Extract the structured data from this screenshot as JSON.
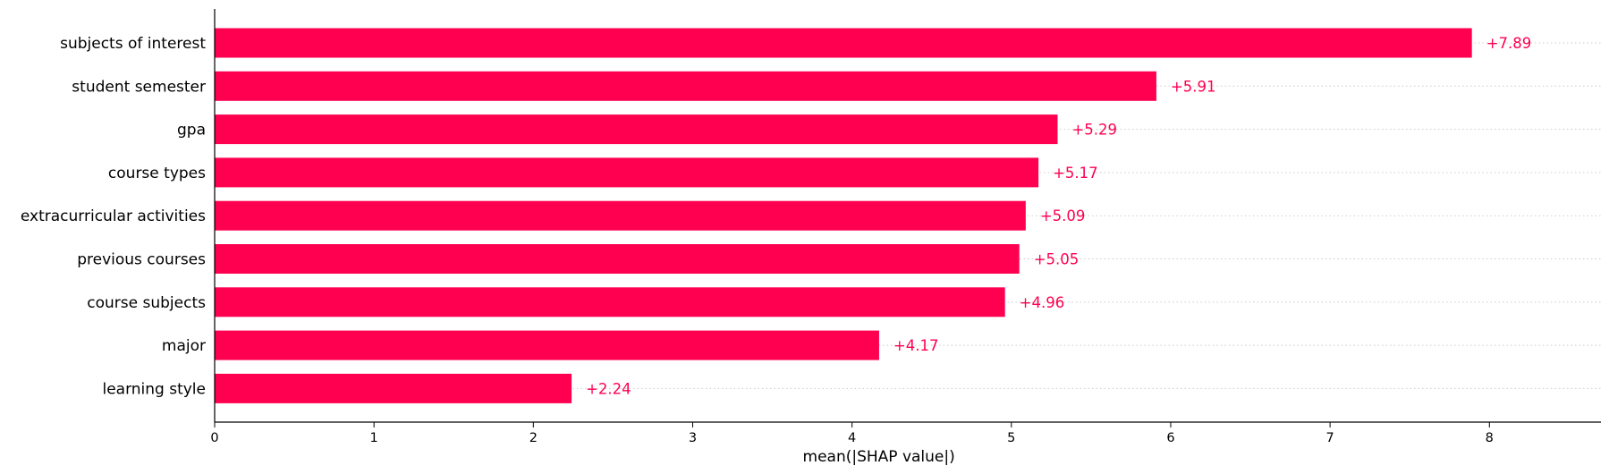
{
  "colors": {
    "bar": "#ff0051",
    "value_label": "#ff0051",
    "axis": "#000000",
    "gridline": "#cccccc"
  },
  "chart_data": {
    "type": "bar",
    "orientation": "horizontal",
    "title": "",
    "xlabel": "mean(|SHAP value|)",
    "ylabel": "",
    "xlim": [
      0,
      8.7
    ],
    "xticks": [
      0,
      1,
      2,
      3,
      4,
      5,
      6,
      7,
      8
    ],
    "grid": false,
    "row_guides": "dotted",
    "categories": [
      "subjects of interest",
      "student semester",
      "gpa",
      "course types",
      "extracurricular activities",
      "previous courses",
      "course subjects",
      "major",
      "learning style"
    ],
    "values": [
      7.89,
      5.91,
      5.29,
      5.17,
      5.09,
      5.05,
      4.96,
      4.17,
      2.24
    ],
    "value_labels": [
      "+7.89",
      "+5.91",
      "+5.29",
      "+5.17",
      "+5.09",
      "+5.05",
      "+4.96",
      "+4.17",
      "+2.24"
    ]
  }
}
